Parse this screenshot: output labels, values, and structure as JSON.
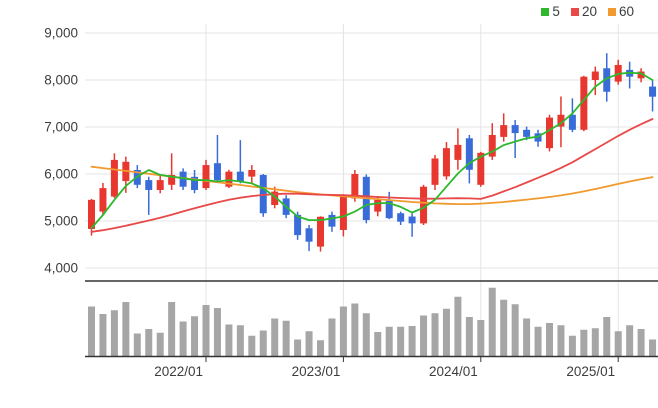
{
  "page": {
    "background": "#ffffff"
  },
  "chart_data": {
    "type": "candlestick",
    "title": "",
    "xlabel": "",
    "ylabel": "",
    "grid": true,
    "legend_position": "top-right",
    "legend": [
      {
        "label": "5",
        "color": "#2db82d"
      },
      {
        "label": "20",
        "color": "#e84848"
      },
      {
        "label": "60",
        "color": "#f09a2f"
      }
    ],
    "colors": {
      "up_candle": "#e7372f",
      "down_candle": "#3a6cd9",
      "ma5_line": "#2db82d",
      "ma20_line": "#e84848",
      "ma60_line": "#f09a2f",
      "volume_bar": "#a6a6a6",
      "gridline": "#e4e4e4",
      "axis_line": "#333333",
      "text": "#3d3d3d"
    },
    "y_axis": {
      "ylim": [
        4000,
        9000
      ],
      "ticks": [
        {
          "value": 9000,
          "label": "9,000"
        },
        {
          "value": 8000,
          "label": "8,000"
        },
        {
          "value": 7000,
          "label": "7,000"
        },
        {
          "value": 6000,
          "label": "6,000"
        },
        {
          "value": 5000,
          "label": "5,000"
        },
        {
          "value": 4000,
          "label": "4,000"
        }
      ]
    },
    "x_axis": {
      "ticks": [
        {
          "index": 10,
          "label": "2022/01"
        },
        {
          "index": 22,
          "label": "2023/01"
        },
        {
          "index": 34,
          "label": "2024/01"
        },
        {
          "index": 46,
          "label": "2025/01"
        }
      ]
    },
    "candles_ohlc": [
      [
        4830,
        5470,
        4690,
        5450
      ],
      [
        5200,
        5810,
        5130,
        5700
      ],
      [
        5520,
        6440,
        5490,
        6300
      ],
      [
        5850,
        6370,
        5600,
        6260
      ],
      [
        6085,
        6190,
        5700,
        5770
      ],
      [
        5870,
        5940,
        5130,
        5660
      ],
      [
        5660,
        5980,
        5590,
        5870
      ],
      [
        5770,
        6440,
        5660,
        5980
      ],
      [
        6050,
        6120,
        5660,
        5730
      ],
      [
        5940,
        6085,
        5590,
        5660
      ],
      [
        5700,
        6300,
        5660,
        6190
      ],
      [
        6230,
        6830,
        5850,
        5870
      ],
      [
        5730,
        6090,
        5700,
        6050
      ],
      [
        6050,
        6720,
        5800,
        5840
      ],
      [
        5945,
        6190,
        5800,
        6085
      ],
      [
        5980,
        6000,
        5090,
        5165
      ],
      [
        5340,
        5730,
        5270,
        5625
      ],
      [
        5480,
        5550,
        5060,
        5130
      ],
      [
        5130,
        5200,
        4600,
        4700
      ],
      [
        4845,
        4915,
        4360,
        4560
      ],
      [
        4455,
        5100,
        4350,
        5090
      ],
      [
        5130,
        5200,
        4770,
        4880
      ],
      [
        4810,
        5570,
        4670,
        5520
      ],
      [
        5480,
        6085,
        5410,
        6000
      ],
      [
        5940,
        5990,
        4950,
        5020
      ],
      [
        5200,
        5530,
        5100,
        5450
      ],
      [
        5430,
        5620,
        5040,
        5060
      ],
      [
        5165,
        5200,
        4915,
        4985
      ],
      [
        5095,
        5165,
        4665,
        4950
      ],
      [
        4950,
        5770,
        4915,
        5730
      ],
      [
        5770,
        6404,
        5660,
        6330
      ],
      [
        5950,
        6680,
        5880,
        6550
      ],
      [
        6300,
        6970,
        6090,
        6620
      ],
      [
        6760,
        6830,
        5800,
        6090
      ],
      [
        5770,
        6470,
        5730,
        6450
      ],
      [
        6370,
        7080,
        6300,
        6830
      ],
      [
        6790,
        7290,
        6690,
        7040
      ],
      [
        7040,
        7150,
        6340,
        6870
      ],
      [
        6940,
        7010,
        6720,
        6790
      ],
      [
        6865,
        6940,
        6580,
        6690
      ],
      [
        6550,
        7260,
        6480,
        7200
      ],
      [
        7010,
        7650,
        6570,
        7260
      ],
      [
        7260,
        7610,
        6890,
        6940
      ],
      [
        6940,
        8090,
        6910,
        8070
      ],
      [
        8000,
        8285,
        7680,
        8180
      ],
      [
        8250,
        8570,
        7540,
        7750
      ],
      [
        7965,
        8430,
        7900,
        8320
      ],
      [
        8215,
        8390,
        7820,
        8070
      ],
      [
        8035,
        8250,
        7950,
        8180
      ],
      [
        7860,
        8000,
        7330,
        7645
      ]
    ],
    "series": [
      {
        "name": "MA5",
        "values": [
          4850,
          5130,
          5450,
          5745,
          5945,
          6085,
          5980,
          5945,
          5910,
          5870,
          5870,
          5840,
          5870,
          5840,
          5800,
          5695,
          5520,
          5305,
          5095,
          5020,
          5020,
          5055,
          5095,
          5200,
          5340,
          5380,
          5380,
          5300,
          5180,
          5280,
          5450,
          5730,
          6010,
          6230,
          6370,
          6475,
          6615,
          6690,
          6760,
          6795,
          6935,
          7080,
          7290,
          7575,
          7860,
          8035,
          8130,
          8155,
          8140,
          8000
        ]
      },
      {
        "name": "MA20",
        "values": [
          4770,
          4805,
          4850,
          4900,
          4955,
          5010,
          5070,
          5135,
          5205,
          5270,
          5335,
          5395,
          5450,
          5495,
          5530,
          5555,
          5570,
          5580,
          5580,
          5570,
          5560,
          5555,
          5550,
          5540,
          5525,
          5510,
          5500,
          5490,
          5480,
          5475,
          5475,
          5480,
          5485,
          5480,
          5470,
          5540,
          5630,
          5720,
          5820,
          5920,
          6020,
          6130,
          6250,
          6390,
          6530,
          6670,
          6810,
          6940,
          7060,
          7170
        ]
      },
      {
        "name": "MA60",
        "values": [
          6155,
          6125,
          6095,
          6065,
          6035,
          6005,
          5975,
          5945,
          5915,
          5885,
          5855,
          5825,
          5795,
          5765,
          5735,
          5705,
          5675,
          5645,
          5615,
          5590,
          5565,
          5545,
          5525,
          5505,
          5485,
          5465,
          5445,
          5425,
          5405,
          5390,
          5375,
          5365,
          5360,
          5360,
          5370,
          5385,
          5405,
          5430,
          5455,
          5480,
          5510,
          5545,
          5585,
          5630,
          5680,
          5735,
          5790,
          5840,
          5890,
          5935
        ]
      }
    ],
    "volume_pct": [
      66,
      56,
      61,
      72,
      30,
      36,
      31,
      72,
      46,
      53,
      68,
      64,
      42,
      41,
      27,
      34,
      50,
      47,
      22,
      33,
      21,
      50,
      66,
      70,
      57,
      32,
      39,
      39,
      40,
      54,
      57,
      63,
      79,
      52,
      48,
      91,
      75,
      69,
      50,
      39,
      44,
      41,
      27,
      35,
      37,
      52,
      33,
      41,
      36,
      22
    ]
  }
}
